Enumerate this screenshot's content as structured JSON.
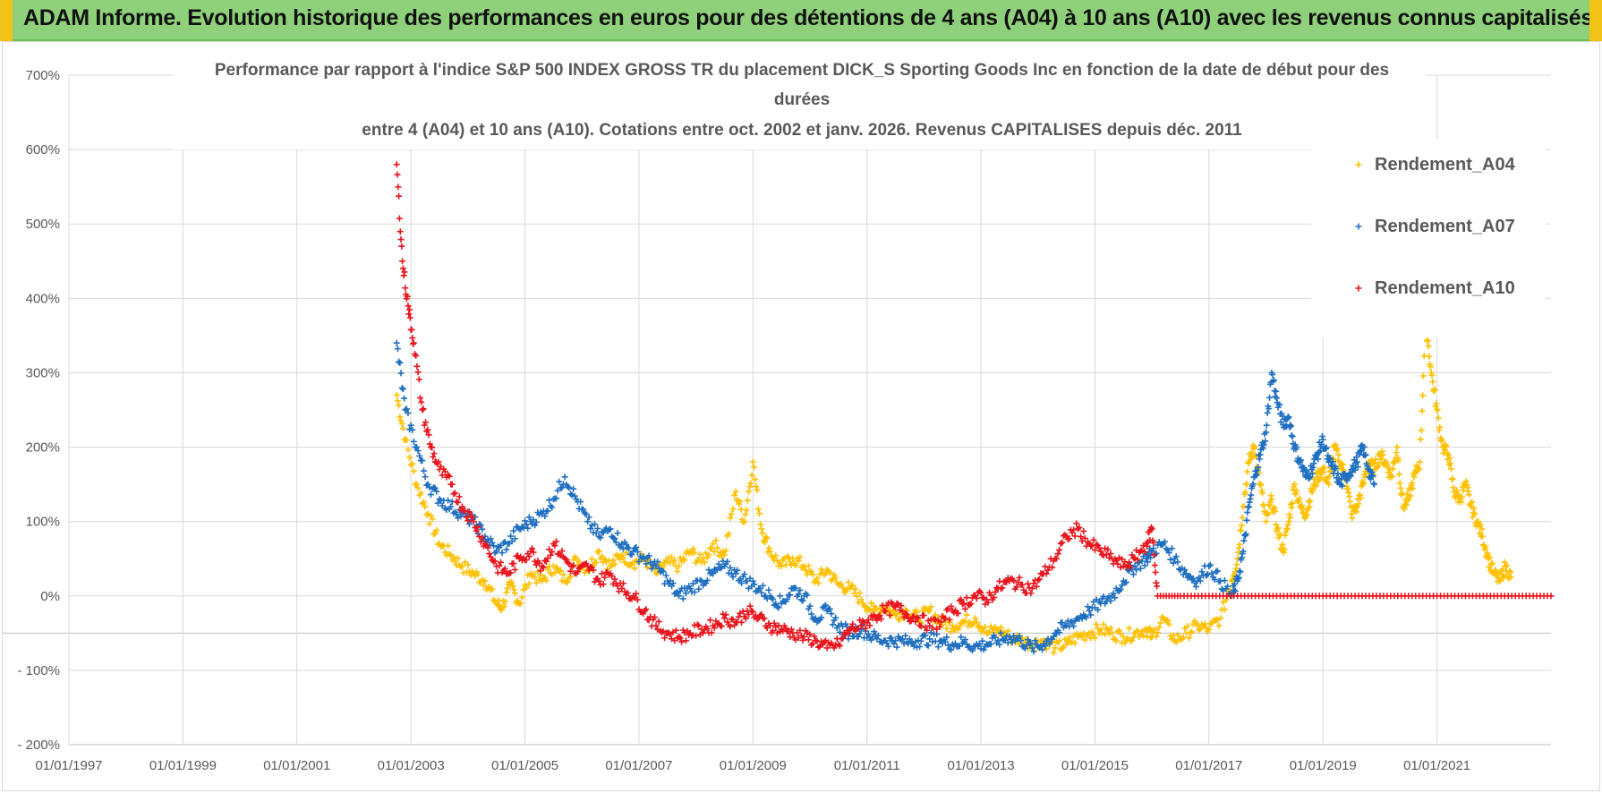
{
  "banner": {
    "title": "ADAM Informe. Evolution historique des performances en euros pour des détentions de 4 ans (A04) à 10 ans (A10) avec les revenus connus capitalisés"
  },
  "chart_data": {
    "type": "scatter",
    "title_lines": [
      "Performance par rapport à l'indice S&P 500 INDEX GROSS TR  du placement DICK_S Sporting Goods Inc en fonction de la date de début pour des",
      "durées",
      "entre 4 (A04) et 10 ans (A10).  Cotations entre oct. 2002 et janv. 2026.  Revenus CAPITALISES depuis déc. 2011"
    ],
    "xlabel": "",
    "ylabel": "",
    "xlim": [
      1997.0,
      2023.0
    ],
    "ylim": [
      -200,
      700
    ],
    "x_tick_labels": [
      "01/01/1997",
      "01/01/1999",
      "01/01/2001",
      "01/01/2003",
      "01/01/2005",
      "01/01/2007",
      "01/01/2009",
      "01/01/2011",
      "01/01/2013",
      "01/01/2015",
      "01/01/2017",
      "01/01/2019",
      "01/01/2021"
    ],
    "x_tick_values": [
      1997,
      1999,
      2001,
      2003,
      2005,
      2007,
      2009,
      2011,
      2013,
      2015,
      2017,
      2019,
      2021
    ],
    "y_tick_labels": [
      "700%",
      "600%",
      "500%",
      "400%",
      "300%",
      "200%",
      "100%",
      "0%",
      "- 100%",
      "- 200%"
    ],
    "y_tick_values": [
      700,
      600,
      500,
      400,
      300,
      200,
      100,
      0,
      -100,
      -200
    ],
    "grid": true,
    "legend_position": "top-right",
    "series": [
      {
        "name": "Rendement_A04",
        "color": "#ffc000",
        "x": [
          2002.75,
          2002.9,
          2003.1,
          2003.3,
          2003.5,
          2003.7,
          2003.9,
          2004.1,
          2004.3,
          2004.5,
          2004.6,
          2004.75,
          2004.9,
          2005.1,
          2005.3,
          2005.5,
          2005.7,
          2005.9,
          2006.1,
          2006.3,
          2006.5,
          2006.7,
          2006.9,
          2007.1,
          2007.3,
          2007.5,
          2007.7,
          2007.9,
          2008.1,
          2008.3,
          2008.5,
          2008.7,
          2008.85,
          2009.0,
          2009.15,
          2009.3,
          2009.5,
          2009.7,
          2009.9,
          2010.1,
          2010.3,
          2010.5,
          2010.7,
          2010.9,
          2011.1,
          2011.3,
          2011.5,
          2011.7,
          2011.9,
          2012.1,
          2012.3,
          2012.5,
          2012.7,
          2012.9,
          2013.1,
          2013.3,
          2013.5,
          2013.7,
          2013.9,
          2014.1,
          2014.3,
          2014.5,
          2014.7,
          2014.9,
          2015.1,
          2015.3,
          2015.5,
          2015.7,
          2015.9,
          2016.0,
          2016.2,
          2016.4,
          2016.6,
          2016.8,
          2017.0,
          2017.2,
          2017.4,
          2017.5,
          2017.6,
          2017.7,
          2017.8,
          2017.9,
          2018.0,
          2018.1,
          2018.2,
          2018.3,
          2018.4,
          2018.5,
          2018.6,
          2018.7,
          2018.8,
          2018.9,
          2019.0,
          2019.1,
          2019.2,
          2019.3,
          2019.4,
          2019.5,
          2019.6,
          2019.7,
          2019.8,
          2019.9,
          2020.0,
          2020.1,
          2020.2,
          2020.3,
          2020.4,
          2020.5,
          2020.6,
          2020.7,
          2020.8,
          2020.9,
          2021.0,
          2021.1,
          2021.2,
          2021.3,
          2021.4,
          2021.5,
          2021.6,
          2021.7,
          2021.8,
          2021.9,
          2022.0,
          2022.1,
          2022.2,
          2022.3
        ],
        "y": [
          270,
          210,
          150,
          110,
          70,
          55,
          40,
          30,
          20,
          -10,
          -15,
          15,
          -10,
          30,
          20,
          40,
          20,
          50,
          35,
          60,
          40,
          55,
          45,
          50,
          30,
          45,
          40,
          60,
          45,
          70,
          55,
          140,
          100,
          180,
          90,
          60,
          40,
          50,
          40,
          20,
          35,
          15,
          10,
          -5,
          -20,
          -15,
          -25,
          -20,
          -30,
          -20,
          -35,
          -40,
          -35,
          -30,
          -50,
          -45,
          -55,
          -60,
          -65,
          -60,
          -70,
          -65,
          -55,
          -50,
          -45,
          -50,
          -55,
          -50,
          -45,
          -55,
          -30,
          -60,
          -50,
          -40,
          -45,
          -30,
          20,
          50,
          120,
          180,
          200,
          150,
          100,
          130,
          90,
          60,
          100,
          150,
          120,
          110,
          140,
          160,
          170,
          150,
          200,
          180,
          160,
          110,
          120,
          150,
          180,
          170,
          190,
          180,
          160,
          200,
          120,
          130,
          160,
          180,
          370,
          300,
          250,
          200,
          190,
          140,
          130,
          150,
          120,
          100,
          80,
          50,
          30,
          20,
          40,
          25
        ]
      },
      {
        "name": "Rendement_A07",
        "color": "#1f6fc0",
        "x": [
          2002.75,
          2002.9,
          2003.1,
          2003.3,
          2003.5,
          2003.7,
          2003.9,
          2004.1,
          2004.3,
          2004.5,
          2004.7,
          2004.9,
          2005.1,
          2005.3,
          2005.5,
          2005.7,
          2005.9,
          2006.1,
          2006.3,
          2006.5,
          2006.7,
          2006.9,
          2007.1,
          2007.3,
          2007.5,
          2007.7,
          2007.9,
          2008.1,
          2008.3,
          2008.5,
          2008.7,
          2008.9,
          2009.1,
          2009.3,
          2009.5,
          2009.7,
          2009.9,
          2010.1,
          2010.3,
          2010.5,
          2010.7,
          2010.9,
          2011.1,
          2011.3,
          2011.5,
          2011.7,
          2011.9,
          2012.1,
          2012.3,
          2012.5,
          2012.7,
          2012.9,
          2013.1,
          2013.3,
          2013.5,
          2013.7,
          2013.9,
          2014.1,
          2014.3,
          2014.5,
          2014.7,
          2014.9,
          2015.1,
          2015.3,
          2015.5,
          2015.7,
          2015.9,
          2016.0,
          2016.2,
          2016.4,
          2016.6,
          2016.8,
          2017.0,
          2017.2,
          2017.4,
          2017.5,
          2017.6,
          2017.7,
          2017.8,
          2017.9,
          2018.0,
          2018.1,
          2018.2,
          2018.3,
          2018.4,
          2018.5,
          2018.6,
          2018.7,
          2018.8,
          2018.9,
          2019.0,
          2019.1,
          2019.2,
          2019.3,
          2019.4,
          2019.5,
          2019.6,
          2019.7,
          2019.8,
          2019.9
        ],
        "y": [
          340,
          250,
          200,
          150,
          130,
          120,
          110,
          100,
          80,
          60,
          70,
          90,
          100,
          110,
          130,
          160,
          130,
          100,
          80,
          90,
          70,
          60,
          50,
          40,
          20,
          0,
          10,
          20,
          30,
          40,
          30,
          20,
          10,
          0,
          -10,
          10,
          0,
          -30,
          -20,
          -40,
          -50,
          -45,
          -55,
          -60,
          -60,
          -62,
          -60,
          -58,
          -60,
          -65,
          -62,
          -68,
          -65,
          -60,
          -55,
          -60,
          -70,
          -65,
          -50,
          -40,
          -30,
          -20,
          -10,
          0,
          20,
          40,
          50,
          60,
          70,
          50,
          30,
          20,
          40,
          20,
          0,
          20,
          60,
          120,
          160,
          190,
          220,
          300,
          260,
          230,
          240,
          200,
          180,
          160,
          170,
          190,
          210,
          180,
          170,
          150,
          160,
          170,
          180,
          200,
          170,
          150
        ]
      },
      {
        "name": "Rendement_A10",
        "color": "#e8141c",
        "x": [
          2002.75,
          2002.85,
          2002.95,
          2003.05,
          2003.2,
          2003.35,
          2003.5,
          2003.7,
          2003.9,
          2004.1,
          2004.3,
          2004.5,
          2004.7,
          2004.9,
          2005.1,
          2005.3,
          2005.5,
          2005.7,
          2005.9,
          2006.1,
          2006.3,
          2006.5,
          2006.7,
          2006.9,
          2007.1,
          2007.3,
          2007.5,
          2007.7,
          2007.9,
          2008.1,
          2008.3,
          2008.5,
          2008.7,
          2008.9,
          2009.1,
          2009.3,
          2009.5,
          2009.7,
          2009.9,
          2010.1,
          2010.3,
          2010.5,
          2010.7,
          2010.9,
          2011.1,
          2011.3,
          2011.5,
          2011.7,
          2011.9,
          2012.1,
          2012.3,
          2012.5,
          2012.7,
          2012.9,
          2013.1,
          2013.3,
          2013.5,
          2013.7,
          2013.9,
          2014.1,
          2014.3,
          2014.5,
          2014.7,
          2014.9,
          2015.1,
          2015.3,
          2015.5,
          2015.7,
          2015.9,
          2016.0,
          2016.1,
          2016.5,
          2017.0,
          2017.5,
          2018.0,
          2018.5,
          2019.0,
          2019.5,
          2020.0,
          2020.5,
          2021.0,
          2021.5,
          2022.0,
          2022.5,
          2023.0
        ],
        "y": [
          580,
          450,
          390,
          340,
          250,
          200,
          170,
          150,
          120,
          100,
          70,
          40,
          30,
          50,
          60,
          40,
          70,
          50,
          30,
          40,
          20,
          30,
          10,
          0,
          -20,
          -40,
          -50,
          -55,
          -50,
          -45,
          -40,
          -30,
          -35,
          -20,
          -30,
          -40,
          -45,
          -50,
          -55,
          -60,
          -70,
          -65,
          -45,
          -40,
          -30,
          -20,
          -15,
          -25,
          -30,
          -40,
          -35,
          -20,
          -10,
          0,
          -5,
          10,
          20,
          15,
          10,
          30,
          50,
          80,
          90,
          70,
          60,
          50,
          40,
          50,
          70,
          90,
          0,
          0,
          0,
          0,
          0,
          0,
          0,
          0,
          0,
          0,
          0,
          0,
          0,
          0,
          0
        ]
      }
    ]
  }
}
